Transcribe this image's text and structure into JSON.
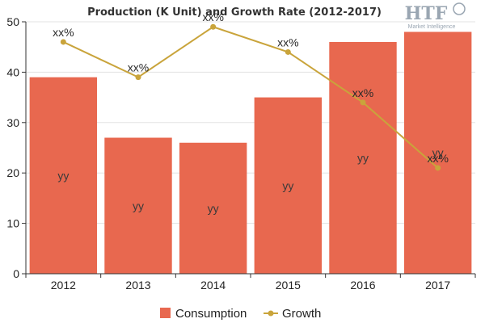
{
  "chart_data": {
    "type": "bar",
    "title": "Production (K Unit) and Growth Rate (2012-2017)",
    "categories": [
      "2012",
      "2013",
      "2014",
      "2015",
      "2016",
      "2017"
    ],
    "ylim": [
      0,
      50
    ],
    "y_ticks": [
      0,
      10,
      20,
      30,
      40,
      50
    ],
    "grid": true,
    "legend_position": "bottom-center",
    "series": [
      {
        "name": "Consumption",
        "type": "bar",
        "color": "#e8684f",
        "values": [
          39,
          27,
          26,
          35,
          46,
          48
        ],
        "labels": [
          "yy",
          "yy",
          "yy",
          "yy",
          "yy",
          "yy"
        ]
      },
      {
        "name": "Growth",
        "type": "line",
        "color": "#c9a43b",
        "values": [
          46,
          39,
          49,
          44,
          34,
          21
        ],
        "labels": [
          "xx%",
          "xx%",
          "xx%",
          "xx%",
          "xx%",
          "xx%"
        ]
      }
    ]
  },
  "logo": {
    "text": "HTF",
    "subtitle": "Market Intelligence"
  }
}
